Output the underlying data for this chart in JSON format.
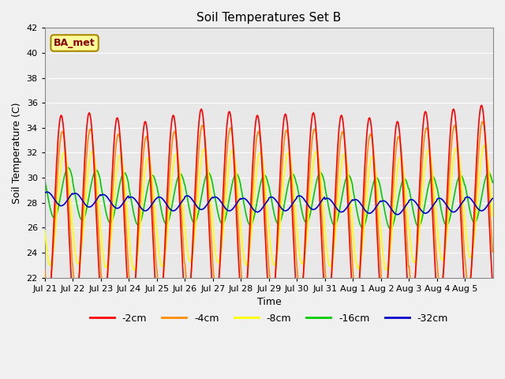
{
  "title": "Soil Temperatures Set B",
  "xlabel": "Time",
  "ylabel": "Soil Temperature (C)",
  "ylim": [
    22,
    42
  ],
  "yticks": [
    22,
    24,
    26,
    28,
    30,
    32,
    34,
    36,
    38,
    40,
    42
  ],
  "xtick_labels": [
    "Jul 21",
    "Jul 22",
    "Jul 23",
    "Jul 24",
    "Jul 25",
    "Jul 26",
    "Jul 27",
    "Jul 28",
    "Jul 29",
    "Jul 30",
    "Jul 31",
    "Aug 1",
    "Aug 2",
    "Aug 3",
    "Aug 4",
    "Aug 5"
  ],
  "legend_entries": [
    "-2cm",
    "-4cm",
    "-8cm",
    "-16cm",
    "-32cm"
  ],
  "legend_colors": [
    "#ff0000",
    "#ff8c00",
    "#ffff00",
    "#00cc00",
    "#0000cc"
  ],
  "annotation_text": "BA_met",
  "annotation_bg": "#ffff99",
  "annotation_border": "#aa8800",
  "n_points_per_day": 48,
  "n_days": 16,
  "mean_2cm": [
    27.0,
    27.2,
    26.8,
    26.5,
    27.0,
    27.5,
    27.3,
    27.0,
    27.1,
    27.2,
    27.0,
    26.8,
    26.5,
    27.3,
    27.5,
    27.8
  ],
  "mean_4cm": [
    27.2,
    27.4,
    27.0,
    26.8,
    27.2,
    27.7,
    27.5,
    27.2,
    27.3,
    27.4,
    27.2,
    27.0,
    26.8,
    27.5,
    27.7,
    28.0
  ],
  "mean_8cm": [
    27.5,
    27.6,
    27.3,
    27.1,
    27.4,
    27.8,
    27.7,
    27.5,
    27.5,
    27.6,
    27.4,
    27.2,
    27.1,
    27.7,
    27.9,
    28.1
  ],
  "mean_16cm": [
    28.8,
    28.6,
    28.4,
    28.2,
    28.3,
    28.4,
    28.3,
    28.2,
    28.3,
    28.4,
    28.2,
    28.0,
    27.9,
    28.1,
    28.2,
    28.4
  ],
  "mean_32cm": [
    28.3,
    28.2,
    28.1,
    27.9,
    27.9,
    28.0,
    27.9,
    27.8,
    27.9,
    28.0,
    27.8,
    27.7,
    27.6,
    27.7,
    27.8,
    27.9
  ]
}
